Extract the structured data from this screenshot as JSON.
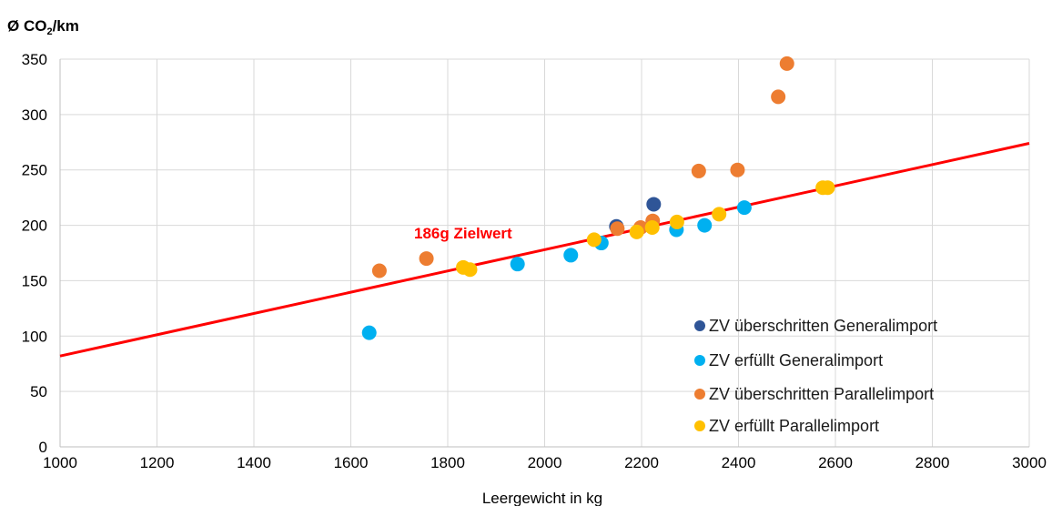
{
  "chart_data": {
    "type": "scatter",
    "ylabel_main": "Ø CO",
    "ylabel_sub": "2",
    "ylabel_unit": "/km",
    "xlabel": "Leergewicht in kg",
    "xlim": [
      1000,
      3000
    ],
    "ylim": [
      0,
      350
    ],
    "x_ticks": [
      "1000",
      "1200",
      "1400",
      "1600",
      "1800",
      "2000",
      "2200",
      "2400",
      "2600",
      "2800",
      "3000"
    ],
    "y_ticks": [
      "0",
      "50",
      "100",
      "150",
      "200",
      "250",
      "300",
      "350"
    ],
    "grid": true,
    "legend_position": "bottom-right",
    "series": [
      {
        "name": "ZV überschritten Generalimport",
        "color": "#2f5597",
        "points": [
          [
            2148,
            199
          ],
          [
            2225,
            219
          ]
        ]
      },
      {
        "name": "ZV erfüllt Generalimport",
        "color": "#00b0f0",
        "points": [
          [
            1638,
            103
          ],
          [
            1944,
            165
          ],
          [
            2054,
            173
          ],
          [
            2117,
            184
          ],
          [
            2272,
            196
          ],
          [
            2330,
            200
          ],
          [
            2412,
            216
          ]
        ]
      },
      {
        "name": "ZV überschritten Parallelimport",
        "color": "#ed7d31",
        "points": [
          [
            1659,
            159
          ],
          [
            1756,
            170
          ],
          [
            2150,
            197
          ],
          [
            2198,
            198
          ],
          [
            2223,
            204
          ],
          [
            2318,
            249
          ],
          [
            2398,
            250
          ],
          [
            2482,
            316
          ],
          [
            2500,
            346
          ]
        ]
      },
      {
        "name": "ZV erfüllt Parallelimport",
        "color": "#ffc000",
        "points": [
          [
            1832,
            162
          ],
          [
            1846,
            160
          ],
          [
            2102,
            187
          ],
          [
            2190,
            194
          ],
          [
            2222,
            198
          ],
          [
            2273,
            203
          ],
          [
            2360,
            210
          ],
          [
            2574,
            234
          ],
          [
            2584,
            234
          ]
        ]
      }
    ],
    "target_line": {
      "color": "#ff0000",
      "points": [
        [
          1000,
          82
        ],
        [
          3000,
          274
        ]
      ],
      "label": "186g Zielwert",
      "label_color": "#ff0000"
    }
  }
}
